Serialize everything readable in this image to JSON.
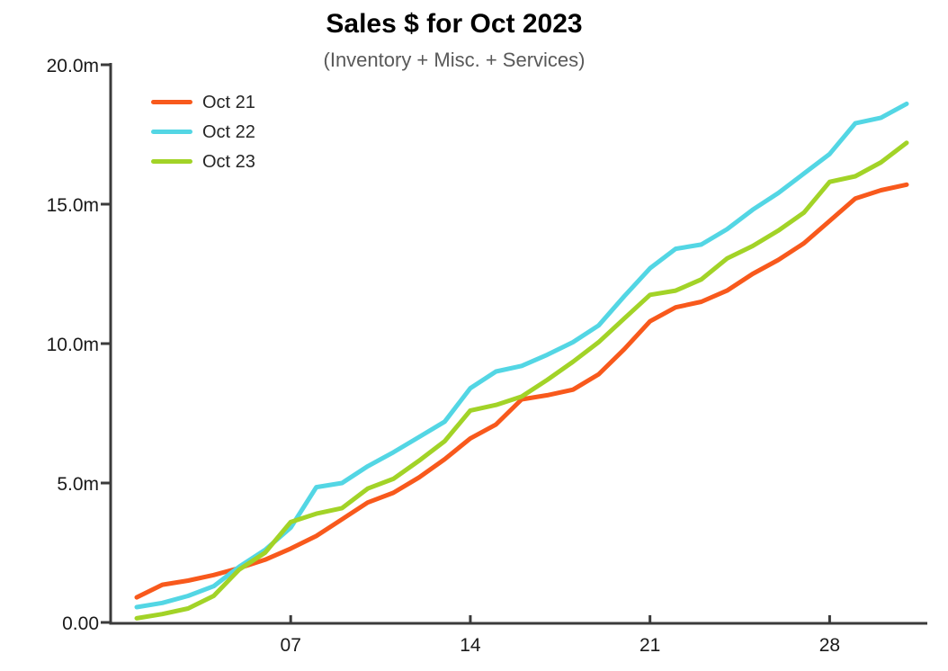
{
  "chart": {
    "title": "Sales $ for Oct 2023",
    "subtitle": "(Inventory + Misc. + Services)"
  },
  "chart_data": {
    "type": "line",
    "title": "Sales $ for Oct 2023",
    "subtitle": "(Inventory + Misc. + Services)",
    "xlabel": "",
    "ylabel": "",
    "unit": "millions of dollars (cumulative month-to-date sales)",
    "x": [
      1,
      2,
      3,
      4,
      5,
      6,
      7,
      8,
      9,
      10,
      11,
      12,
      13,
      14,
      15,
      16,
      17,
      18,
      19,
      20,
      21,
      22,
      23,
      24,
      25,
      26,
      27,
      28,
      29,
      30,
      31
    ],
    "xlim": [
      1,
      31
    ],
    "ylim": [
      0,
      20
    ],
    "grid": false,
    "legend_position": "top-left",
    "x_ticks": {
      "values": [
        7,
        14,
        21,
        28
      ],
      "labels": [
        "07",
        "14",
        "21",
        "28"
      ]
    },
    "y_ticks": {
      "values": [
        0,
        5,
        10,
        15,
        20
      ],
      "labels": [
        "0.00",
        "5.0m",
        "10.0m",
        "15.0m",
        "20.0m"
      ]
    },
    "axis_color": "#3b3b3b",
    "text_color": "#1a1a1a",
    "subtitle_color": "#595959",
    "series": [
      {
        "name": "Oct 21",
        "color": "#F8591C",
        "values": [
          0.9,
          1.35,
          1.5,
          1.7,
          1.95,
          2.25,
          2.65,
          3.1,
          3.7,
          4.3,
          4.65,
          5.2,
          5.85,
          6.6,
          7.1,
          8.0,
          8.15,
          8.35,
          8.9,
          9.8,
          10.8,
          11.3,
          11.5,
          11.9,
          12.5,
          13.0,
          13.6,
          14.4,
          15.2,
          15.5,
          15.7
        ]
      },
      {
        "name": "Oct 22",
        "color": "#53D6E4",
        "values": [
          0.55,
          0.7,
          0.95,
          1.3,
          2.0,
          2.6,
          3.4,
          4.85,
          5.0,
          5.6,
          6.1,
          6.65,
          7.2,
          8.4,
          9.0,
          9.2,
          9.6,
          10.05,
          10.65,
          11.7,
          12.7,
          13.4,
          13.55,
          14.1,
          14.8,
          15.4,
          16.1,
          16.8,
          17.9,
          18.1,
          18.6
        ]
      },
      {
        "name": "Oct 23",
        "color": "#A2D327",
        "values": [
          0.15,
          0.3,
          0.5,
          0.95,
          1.9,
          2.5,
          3.6,
          3.9,
          4.1,
          4.8,
          5.15,
          5.8,
          6.5,
          7.6,
          7.8,
          8.1,
          8.7,
          9.35,
          10.05,
          10.9,
          11.75,
          11.9,
          12.3,
          13.05,
          13.5,
          14.05,
          14.7,
          15.8,
          16.0,
          16.5,
          17.2
        ]
      }
    ]
  }
}
